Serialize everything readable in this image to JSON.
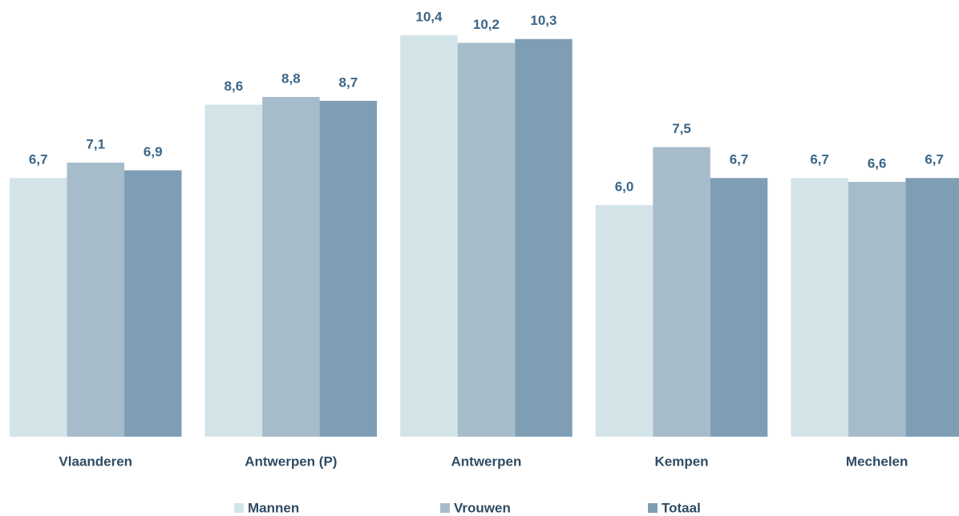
{
  "chart_data": {
    "type": "bar",
    "categories": [
      "Vlaanderen",
      "Antwerpen (P)",
      "Antwerpen",
      "Kempen",
      "Mechelen"
    ],
    "series": [
      {
        "name": "Mannen",
        "color": "#d3e4e9",
        "values": [
          6.7,
          8.6,
          10.4,
          6.0,
          6.7
        ],
        "value_labels": [
          "6,7",
          "8,6",
          "10,4",
          "6,0",
          "6,7"
        ]
      },
      {
        "name": "Vrouwen",
        "color": "#a7bccb",
        "values": [
          7.1,
          8.8,
          10.2,
          7.5,
          6.6
        ],
        "value_labels": [
          "7,1",
          "8,8",
          "10,2",
          "7,5",
          "6,6"
        ]
      },
      {
        "name": "Totaal",
        "color": "#7e9eb6",
        "values": [
          6.9,
          8.7,
          10.3,
          6.7,
          6.7
        ],
        "value_labels": [
          "6,9",
          "8,7",
          "10,3",
          "6,7",
          "6,7"
        ]
      }
    ],
    "ylim": [
      0,
      11
    ],
    "legend": "bottom"
  }
}
